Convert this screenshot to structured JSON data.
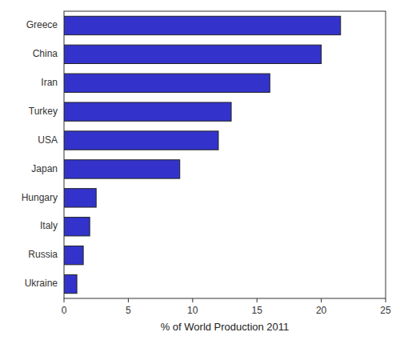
{
  "chart_data": {
    "type": "bar",
    "orientation": "horizontal",
    "categories": [
      "Greece",
      "China",
      "Iran",
      "Turkey",
      "USA",
      "Japan",
      "Hungary",
      "Italy",
      "Russia",
      "Ukraine"
    ],
    "values": [
      21.5,
      20.0,
      16.0,
      13.0,
      12.0,
      9.0,
      2.5,
      2.0,
      1.5,
      1.0
    ],
    "color": "#3333CC",
    "xlabel": "% of World Production 2011",
    "xlim": [
      0,
      25
    ],
    "xticks": [
      0,
      5,
      10,
      15,
      20,
      25
    ],
    "grid": false
  }
}
